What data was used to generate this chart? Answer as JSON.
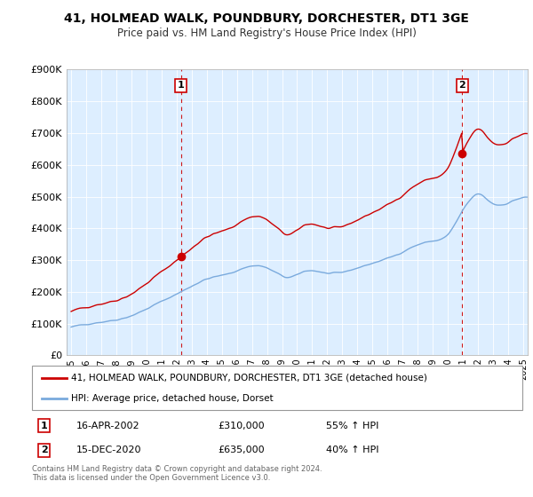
{
  "title": "41, HOLMEAD WALK, POUNDBURY, DORCHESTER, DT1 3GE",
  "subtitle": "Price paid vs. HM Land Registry's House Price Index (HPI)",
  "legend_line1": "41, HOLMEAD WALK, POUNDBURY, DORCHESTER, DT1 3GE (detached house)",
  "legend_line2": "HPI: Average price, detached house, Dorset",
  "note": "Contains HM Land Registry data © Crown copyright and database right 2024.\nThis data is licensed under the Open Government Licence v3.0.",
  "sale1_date": "16-APR-2002",
  "sale1_price": "£310,000",
  "sale1_hpi": "55% ↑ HPI",
  "sale2_date": "15-DEC-2020",
  "sale2_price": "£635,000",
  "sale2_hpi": "40% ↑ HPI",
  "red_color": "#cc0000",
  "blue_color": "#7aaadd",
  "dashed_red": "#cc0000",
  "bg_color": "#ddeeff",
  "ylim_min": 0,
  "ylim_max": 900000,
  "yticks": [
    0,
    100000,
    200000,
    300000,
    400000,
    500000,
    600000,
    700000,
    800000,
    900000
  ],
  "ytick_labels": [
    "£0",
    "£100K",
    "£200K",
    "£300K",
    "£400K",
    "£500K",
    "£600K",
    "£700K",
    "£800K",
    "£900K"
  ],
  "sale1_x": 2002.29,
  "sale1_y": 310000,
  "sale2_x": 2020.96,
  "sale2_y": 635000,
  "xmin": 1994.7,
  "xmax": 2025.3
}
